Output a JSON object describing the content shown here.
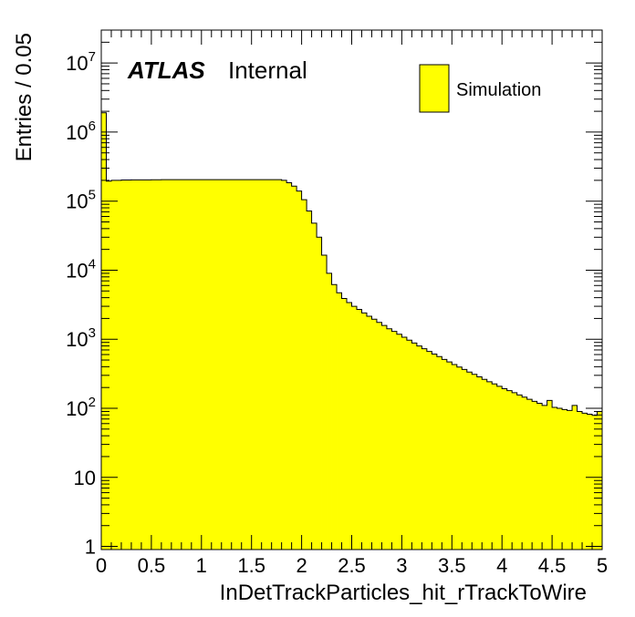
{
  "chart_data": {
    "type": "histogram",
    "xlabel": "InDetTrackParticles_hit_rTrackToWire",
    "ylabel": "Entries / 0.05",
    "experiment": "ATLAS",
    "label": "Internal",
    "legend": {
      "entries": [
        "Simulation"
      ],
      "placement": "top-right"
    },
    "x_range": [
      0,
      5
    ],
    "y_range": [
      0.9,
      30000000
    ],
    "y_scale": "log",
    "bin_width": 0.05,
    "fill_color": "#ffff00",
    "line_color": "#000000",
    "x_ticks": [
      "0",
      "0.5",
      "1",
      "1.5",
      "2",
      "2.5",
      "3",
      "3.5",
      "4",
      "4.5",
      "5"
    ],
    "y_ticks": [
      {
        "value": 1,
        "base": "1",
        "exp": ""
      },
      {
        "value": 10,
        "base": "10",
        "exp": ""
      },
      {
        "value": 100,
        "base": "10",
        "exp": "2"
      },
      {
        "value": 1000,
        "base": "10",
        "exp": "3"
      },
      {
        "value": 10000,
        "base": "10",
        "exp": "4"
      },
      {
        "value": 100000,
        "base": "10",
        "exp": "5"
      },
      {
        "value": 1000000,
        "base": "10",
        "exp": "6"
      },
      {
        "value": 10000000,
        "base": "10",
        "exp": "7"
      }
    ],
    "series": [
      {
        "name": "Simulation",
        "bin_edges_start": 0,
        "values": [
          1900000,
          195000,
          200000,
          200000,
          202000,
          202000,
          203000,
          203000,
          203000,
          203000,
          204000,
          204000,
          205000,
          205000,
          205000,
          205000,
          205000,
          205000,
          205000,
          205000,
          205000,
          205000,
          205000,
          205000,
          205000,
          205000,
          205000,
          205000,
          205000,
          205000,
          205000,
          205000,
          205000,
          205000,
          205000,
          205000,
          200000,
          185000,
          165000,
          140000,
          105000,
          72000,
          48000,
          30000,
          16500,
          9000,
          6200,
          4700,
          3900,
          3400,
          3000,
          2700,
          2400,
          2150,
          1950,
          1750,
          1580,
          1420,
          1300,
          1180,
          1070,
          970,
          880,
          800,
          730,
          665,
          610,
          560,
          510,
          470,
          430,
          395,
          365,
          335,
          310,
          285,
          262,
          242,
          225,
          208,
          192,
          180,
          168,
          156,
          145,
          135,
          126,
          118,
          110,
          130,
          103,
          100,
          96,
          93,
          110,
          90,
          85,
          82,
          79,
          90
        ]
      }
    ]
  }
}
